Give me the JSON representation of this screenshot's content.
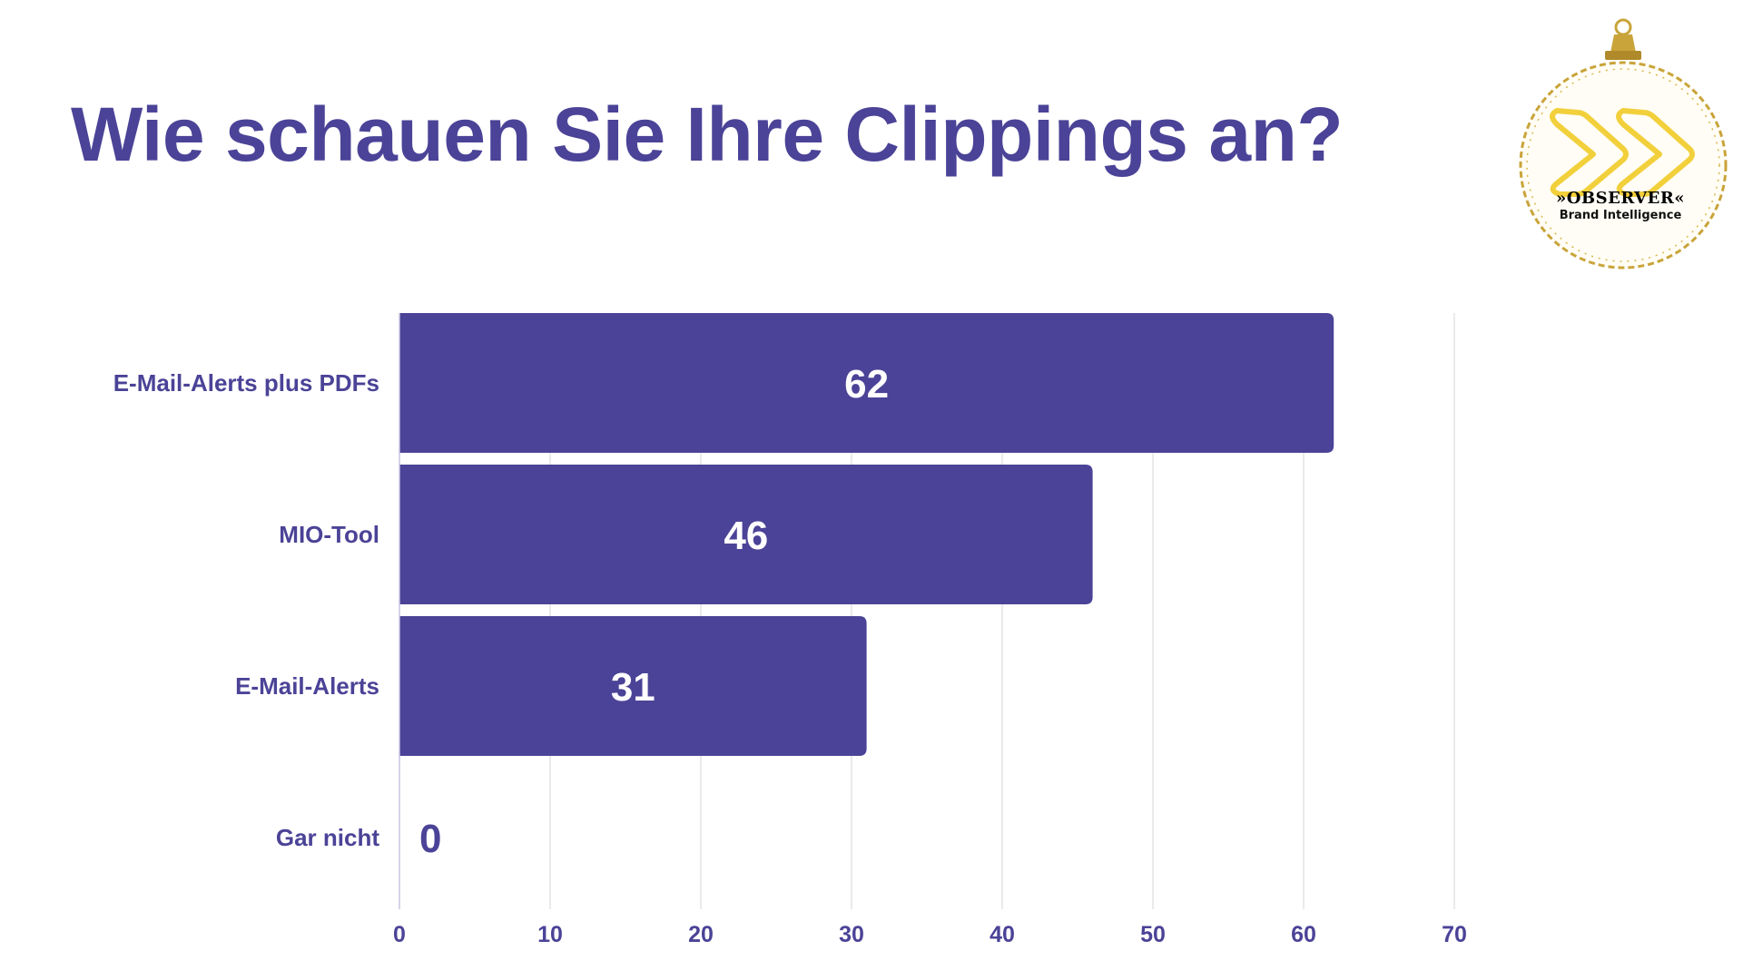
{
  "title": "Wie schauen Sie Ihre Clippings an?",
  "colors": {
    "accent": "#4b4397",
    "bar": "#4b4397",
    "bar_text": "#ffffff",
    "grid": "#e3e3e3",
    "logo_gold": "#c9a43a",
    "logo_chevron": "#f2d03b"
  },
  "logo": {
    "name": "»OBSERVER«",
    "tagline": "Brand Intelligence",
    "icon": "ornament-chevron-icon"
  },
  "chart_data": {
    "type": "bar",
    "orientation": "horizontal",
    "categories": [
      "E-Mail-Alerts plus PDFs",
      "MIO-Tool",
      "E-Mail-Alerts",
      "Gar nicht"
    ],
    "values": [
      62,
      46,
      31,
      0
    ],
    "data_labels": [
      "62",
      "46",
      "31",
      "0"
    ],
    "xlim": [
      0,
      70
    ],
    "xticks": [
      0,
      10,
      20,
      30,
      40,
      50,
      60,
      70
    ],
    "grid": "vertical"
  }
}
